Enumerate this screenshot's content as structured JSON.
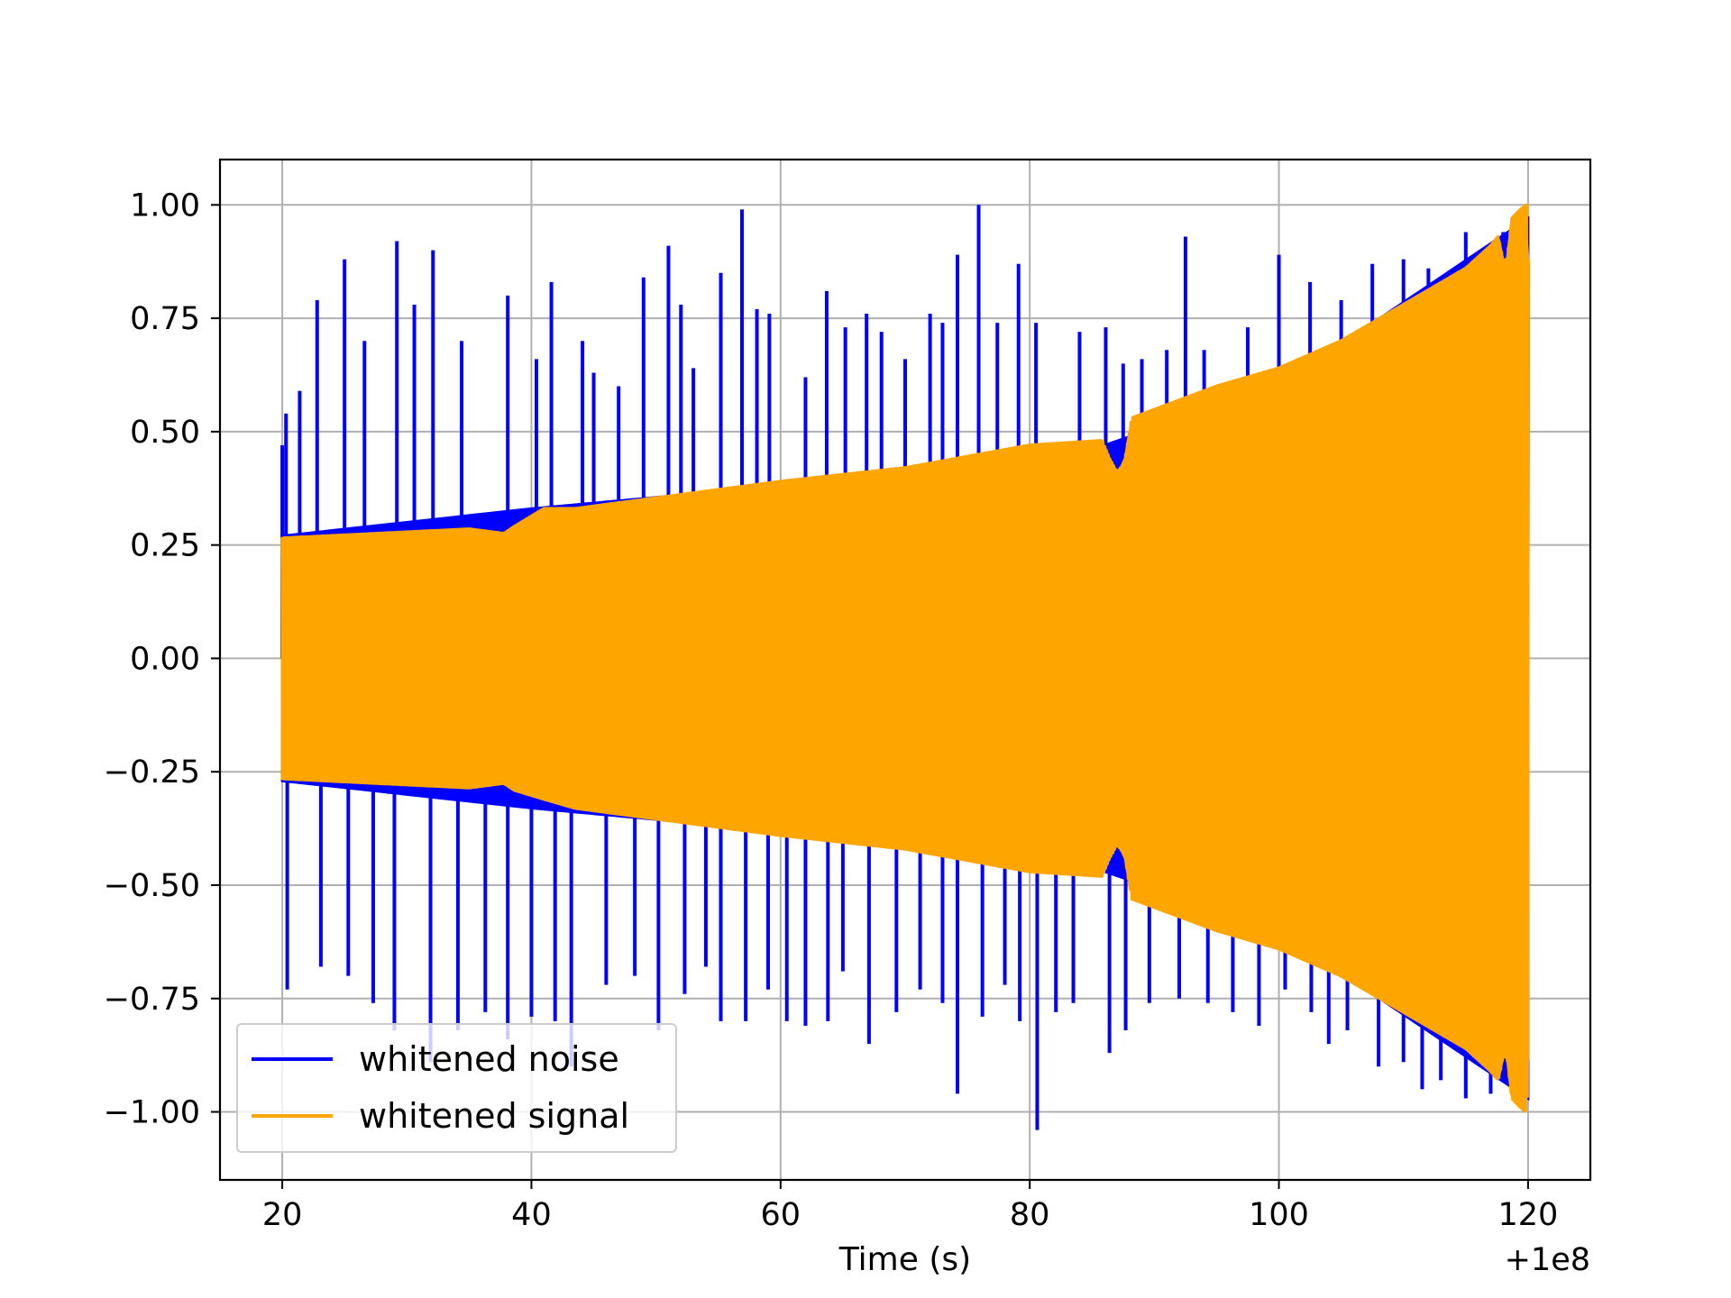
{
  "chart_data": {
    "type": "line",
    "title": "",
    "xlabel": "Time (s)",
    "ylabel": "",
    "x_offset_label": "+1e8",
    "xlim": [
      15,
      125
    ],
    "ylim": [
      -1.15,
      1.1
    ],
    "grid": true,
    "legend_position": "lower-left",
    "x_ticks": [
      20,
      40,
      60,
      80,
      100,
      120
    ],
    "x_tick_labels": [
      "20",
      "40",
      "60",
      "80",
      "100",
      "120"
    ],
    "y_ticks": [
      1.0,
      0.75,
      0.5,
      0.25,
      0.0,
      -0.25,
      -0.5,
      -0.75,
      -1.0
    ],
    "y_tick_labels": [
      "1.00",
      "0.75",
      "0.50",
      "0.25",
      "0.00",
      "−0.25",
      "−0.50",
      "−0.75",
      "−1.00"
    ],
    "x_range_data": [
      20,
      120
    ],
    "series": [
      {
        "name": "whitened noise",
        "color": "#0000ff",
        "envelope_upper": [
          [
            20,
            0.27
          ],
          [
            40,
            0.33
          ],
          [
            60,
            0.38
          ],
          [
            80,
            0.45
          ],
          [
            86,
            0.47
          ],
          [
            100,
            0.6
          ],
          [
            120,
            0.97
          ]
        ],
        "envelope_lower": [
          [
            20,
            -0.27
          ],
          [
            40,
            -0.33
          ],
          [
            60,
            -0.38
          ],
          [
            80,
            -0.45
          ],
          [
            86,
            -0.47
          ],
          [
            100,
            -0.6
          ],
          [
            120,
            -0.97
          ]
        ],
        "peaks_upper": [
          [
            20.0,
            0.47
          ],
          [
            20.3,
            0.54
          ],
          [
            21.4,
            0.59
          ],
          [
            22.8,
            0.79
          ],
          [
            25.0,
            0.88
          ],
          [
            26.6,
            0.7
          ],
          [
            29.2,
            0.92
          ],
          [
            30.6,
            0.78
          ],
          [
            32.1,
            0.9
          ],
          [
            34.4,
            0.7
          ],
          [
            38.1,
            0.8
          ],
          [
            40.4,
            0.66
          ],
          [
            41.6,
            0.83
          ],
          [
            44.1,
            0.7
          ],
          [
            45.0,
            0.63
          ],
          [
            47.0,
            0.6
          ],
          [
            49.0,
            0.84
          ],
          [
            51.0,
            0.91
          ],
          [
            52.0,
            0.78
          ],
          [
            53.0,
            0.64
          ],
          [
            55.2,
            0.85
          ],
          [
            56.9,
            0.99
          ],
          [
            58.1,
            0.77
          ],
          [
            59.1,
            0.76
          ],
          [
            62.0,
            0.62
          ],
          [
            63.7,
            0.81
          ],
          [
            65.2,
            0.73
          ],
          [
            66.9,
            0.76
          ],
          [
            68.1,
            0.72
          ],
          [
            70.0,
            0.66
          ],
          [
            72.0,
            0.76
          ],
          [
            73.0,
            0.74
          ],
          [
            74.2,
            0.89
          ],
          [
            75.9,
            1.0
          ],
          [
            77.4,
            0.74
          ],
          [
            79.1,
            0.87
          ],
          [
            80.5,
            0.74
          ],
          [
            84.0,
            0.72
          ],
          [
            86.1,
            0.73
          ],
          [
            87.5,
            0.65
          ],
          [
            89.0,
            0.66
          ],
          [
            91.0,
            0.68
          ],
          [
            92.5,
            0.93
          ],
          [
            94.0,
            0.68
          ],
          [
            97.5,
            0.73
          ],
          [
            100.0,
            0.89
          ],
          [
            102.5,
            0.83
          ],
          [
            105.0,
            0.79
          ],
          [
            107.5,
            0.87
          ],
          [
            110.0,
            0.88
          ],
          [
            112.0,
            0.86
          ],
          [
            115.0,
            0.94
          ],
          [
            118.0,
            0.94
          ]
        ],
        "peaks_lower": [
          [
            20.4,
            -0.73
          ],
          [
            23.1,
            -0.68
          ],
          [
            25.3,
            -0.7
          ],
          [
            27.3,
            -0.76
          ],
          [
            29.0,
            -0.82
          ],
          [
            31.9,
            -0.89
          ],
          [
            34.1,
            -0.82
          ],
          [
            36.3,
            -0.78
          ],
          [
            38.1,
            -0.84
          ],
          [
            40.0,
            -0.79
          ],
          [
            41.9,
            -0.8
          ],
          [
            43.2,
            -0.9
          ],
          [
            46.0,
            -0.72
          ],
          [
            48.3,
            -0.7
          ],
          [
            50.2,
            -0.82
          ],
          [
            52.3,
            -0.74
          ],
          [
            54.0,
            -0.68
          ],
          [
            55.2,
            -0.8
          ],
          [
            57.2,
            -0.8
          ],
          [
            59.0,
            -0.73
          ],
          [
            60.5,
            -0.8
          ],
          [
            62.0,
            -0.81
          ],
          [
            63.8,
            -0.8
          ],
          [
            65.0,
            -0.69
          ],
          [
            67.1,
            -0.85
          ],
          [
            69.3,
            -0.78
          ],
          [
            71.2,
            -0.73
          ],
          [
            73.0,
            -0.76
          ],
          [
            74.2,
            -0.96
          ],
          [
            76.2,
            -0.79
          ],
          [
            78.0,
            -0.72
          ],
          [
            79.2,
            -0.8
          ],
          [
            80.6,
            -1.04
          ],
          [
            82.1,
            -0.78
          ],
          [
            83.5,
            -0.76
          ],
          [
            86.4,
            -0.87
          ],
          [
            87.7,
            -0.82
          ],
          [
            89.6,
            -0.76
          ],
          [
            92.0,
            -0.75
          ],
          [
            94.3,
            -0.76
          ],
          [
            96.3,
            -0.78
          ],
          [
            98.4,
            -0.81
          ],
          [
            100.5,
            -0.73
          ],
          [
            102.6,
            -0.78
          ],
          [
            104.0,
            -0.85
          ],
          [
            105.5,
            -0.82
          ],
          [
            108.0,
            -0.9
          ],
          [
            110.0,
            -0.89
          ],
          [
            111.5,
            -0.95
          ],
          [
            113.0,
            -0.93
          ],
          [
            115.0,
            -0.97
          ],
          [
            117.0,
            -0.96
          ],
          [
            119.0,
            -0.98
          ]
        ]
      },
      {
        "name": "whitened signal",
        "color": "#ffa500",
        "envelope_upper": [
          [
            20,
            0.265
          ],
          [
            35,
            0.285
          ],
          [
            37.8,
            0.275
          ],
          [
            38.6,
            0.29
          ],
          [
            41.0,
            0.33
          ],
          [
            43.5,
            0.33
          ],
          [
            60,
            0.39
          ],
          [
            70,
            0.42
          ],
          [
            80,
            0.47
          ],
          [
            85.8,
            0.48
          ],
          [
            86.4,
            0.44
          ],
          [
            87.0,
            0.41
          ],
          [
            87.6,
            0.43
          ],
          [
            88.2,
            0.53
          ],
          [
            95,
            0.6
          ],
          [
            100,
            0.64
          ],
          [
            105,
            0.7
          ],
          [
            110,
            0.78
          ],
          [
            115,
            0.86
          ],
          [
            117.0,
            0.91
          ],
          [
            117.6,
            0.93
          ],
          [
            118.2,
            0.85
          ],
          [
            118.7,
            0.97
          ],
          [
            119.4,
            0.99
          ],
          [
            119.9,
            1.0
          ],
          [
            120,
            0.88
          ]
        ],
        "envelope_lower": [
          [
            20,
            -0.265
          ],
          [
            35,
            -0.285
          ],
          [
            37.8,
            -0.275
          ],
          [
            38.6,
            -0.29
          ],
          [
            41.0,
            -0.31
          ],
          [
            43.5,
            -0.33
          ],
          [
            60,
            -0.39
          ],
          [
            70,
            -0.42
          ],
          [
            80,
            -0.47
          ],
          [
            85.8,
            -0.48
          ],
          [
            86.4,
            -0.44
          ],
          [
            87.0,
            -0.41
          ],
          [
            87.6,
            -0.43
          ],
          [
            88.2,
            -0.53
          ],
          [
            95,
            -0.6
          ],
          [
            100,
            -0.64
          ],
          [
            105,
            -0.7
          ],
          [
            110,
            -0.78
          ],
          [
            115,
            -0.86
          ],
          [
            117.0,
            -0.91
          ],
          [
            117.6,
            -0.93
          ],
          [
            118.2,
            -0.85
          ],
          [
            118.7,
            -0.97
          ],
          [
            119.4,
            -0.99
          ],
          [
            119.9,
            -1.0
          ],
          [
            120,
            -0.88
          ]
        ]
      }
    ]
  }
}
